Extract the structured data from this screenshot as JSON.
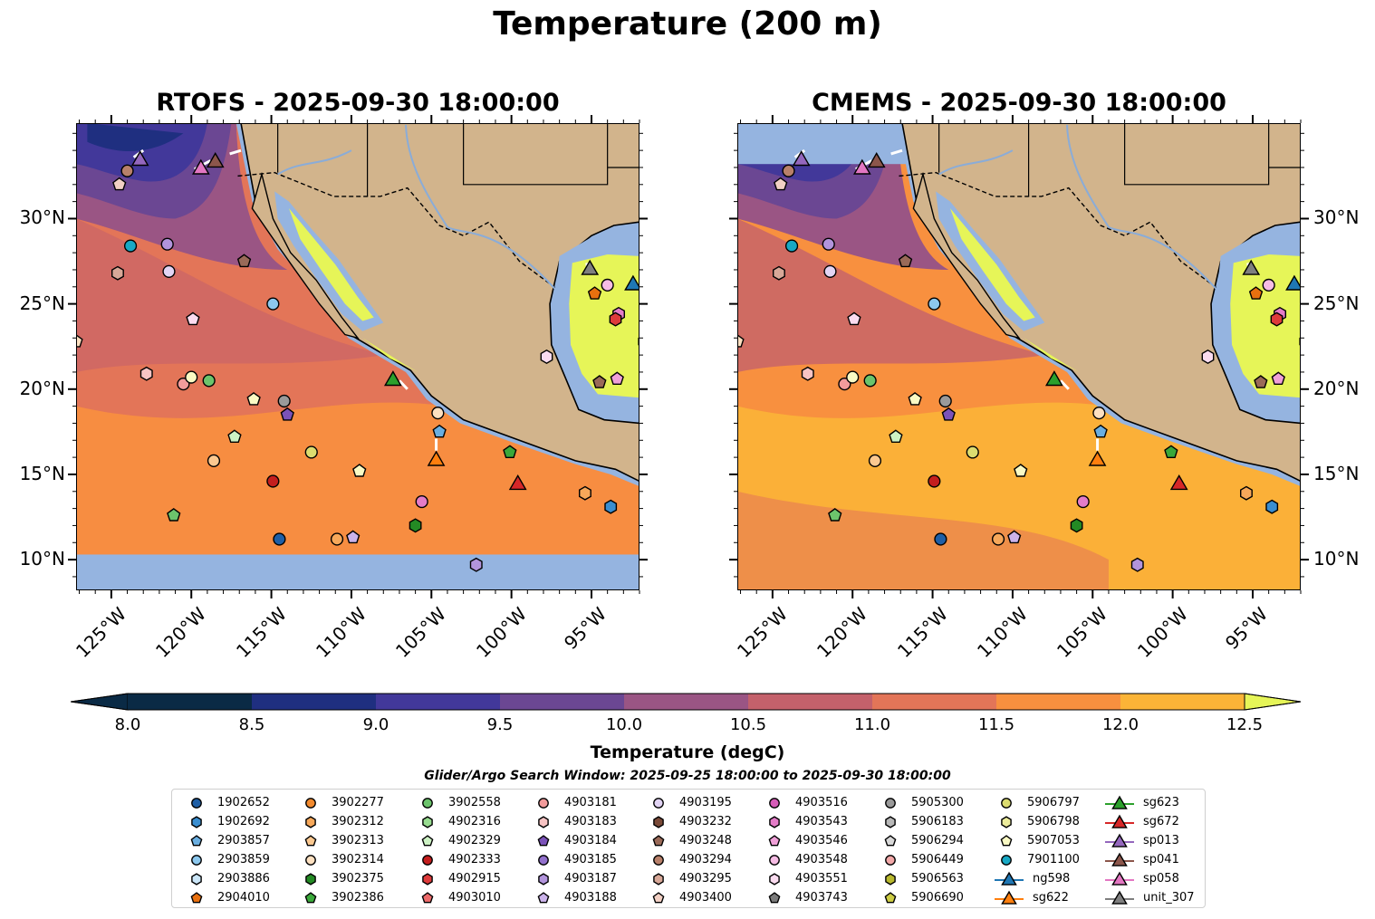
{
  "figure": {
    "title": "Temperature (200 m)"
  },
  "chart_data": [
    {
      "type": "heatmap",
      "title": "RTOFS - 2025-09-30 18:00:00",
      "xlim": [
        -127,
        -92
      ],
      "ylim": [
        8,
        35
      ],
      "xticks": [
        -125,
        -120,
        -115,
        -110,
        -105,
        -100,
        -95
      ],
      "xtick_labels": [
        "125°W",
        "120°W",
        "115°W",
        "110°W",
        "105°W",
        "100°W",
        "95°W"
      ],
      "yticks": [
        10,
        15,
        20,
        25,
        30
      ],
      "ytick_labels": [
        "10°N",
        "15°N",
        "20°N",
        "25°N",
        "30°N"
      ],
      "ytick_side": "left",
      "dominant_band": "10.5-11.5 degC offshore, 11.5-12.5 degC near coast and south"
    },
    {
      "type": "heatmap",
      "title": "CMEMS - 2025-09-30 18:00:00",
      "xlim": [
        -127,
        -92
      ],
      "ylim": [
        8,
        35
      ],
      "xticks": [
        -125,
        -120,
        -115,
        -110,
        -105,
        -100,
        -95
      ],
      "xtick_labels": [
        "125°W",
        "120°W",
        "115°W",
        "110°W",
        "105°W",
        "100°W",
        "95°W"
      ],
      "yticks": [
        10,
        15,
        20,
        25,
        30
      ],
      "ytick_labels": [
        "10°N",
        "15°N",
        "20°N",
        "25°N",
        "30°N"
      ],
      "ytick_side": "right",
      "dominant_band": "9.5-11.5 degC offshore north, 11.5-12.5 degC south"
    }
  ],
  "colorbar": {
    "label": "Temperature (degC)",
    "levels": [
      8.0,
      8.5,
      9.0,
      9.5,
      10.0,
      10.5,
      11.0,
      11.5,
      12.0,
      12.5
    ],
    "tick_labels": [
      "8.0",
      "8.5",
      "9.0",
      "9.5",
      "10.0",
      "10.5",
      "11.0",
      "11.5",
      "12.0",
      "12.5"
    ],
    "colors": [
      "#0a2a45",
      "#1f2f80",
      "#42389a",
      "#6b4793",
      "#9a5584",
      "#c4616b",
      "#e37558",
      "#f8903f",
      "#fbb437",
      "#e6f558"
    ],
    "under_color": "#0a2a45",
    "over_color": "#e6f558"
  },
  "legend": {
    "title": "Glider/Argo Search Window: 2025-09-25 18:00:00 to 2025-09-30 18:00:00",
    "columns": [
      [
        {
          "label": "1902652",
          "shape": "circle",
          "color": "#1f5fa6"
        },
        {
          "label": "1902692",
          "shape": "hexagon",
          "color": "#3a8ed0"
        },
        {
          "label": "2903857",
          "shape": "pentagon",
          "color": "#6aaee0"
        },
        {
          "label": "2903859",
          "shape": "circle",
          "color": "#8cc8ee"
        },
        {
          "label": "2903886",
          "shape": "hexagon",
          "color": "#cbe6f8"
        },
        {
          "label": "2904010",
          "shape": "pentagon",
          "color": "#e8700f"
        }
      ],
      [
        {
          "label": "3902277",
          "shape": "circle",
          "color": "#f28a2e"
        },
        {
          "label": "3902312",
          "shape": "hexagon",
          "color": "#f7a85a"
        },
        {
          "label": "3902313",
          "shape": "pentagon",
          "color": "#fbc890"
        },
        {
          "label": "3902314",
          "shape": "circle",
          "color": "#fde0c0"
        },
        {
          "label": "3902375",
          "shape": "hexagon",
          "color": "#248a24"
        },
        {
          "label": "3902386",
          "shape": "pentagon",
          "color": "#3aa83a"
        }
      ],
      [
        {
          "label": "3902558",
          "shape": "circle",
          "color": "#6cc46c"
        },
        {
          "label": "4902316",
          "shape": "hexagon",
          "color": "#98dc90"
        },
        {
          "label": "4902329",
          "shape": "pentagon",
          "color": "#cdf2c4"
        },
        {
          "label": "4902333",
          "shape": "circle",
          "color": "#c41e1e"
        },
        {
          "label": "4902915",
          "shape": "hexagon",
          "color": "#de3b3b"
        },
        {
          "label": "4903010",
          "shape": "pentagon",
          "color": "#ec6a6a"
        }
      ],
      [
        {
          "label": "4903181",
          "shape": "circle",
          "color": "#f29b9b"
        },
        {
          "label": "4903183",
          "shape": "hexagon",
          "color": "#f8c4c4"
        },
        {
          "label": "4903184",
          "shape": "pentagon",
          "color": "#7b52b8"
        },
        {
          "label": "4903185",
          "shape": "circle",
          "color": "#9270cc"
        },
        {
          "label": "4903187",
          "shape": "hexagon",
          "color": "#b294dc"
        },
        {
          "label": "4903188",
          "shape": "pentagon",
          "color": "#cbb3ea"
        }
      ],
      [
        {
          "label": "4903195",
          "shape": "circle",
          "color": "#e2d4f4"
        },
        {
          "label": "4903232",
          "shape": "hexagon",
          "color": "#7a4a38"
        },
        {
          "label": "4903248",
          "shape": "pentagon",
          "color": "#9a6a58"
        },
        {
          "label": "4903294",
          "shape": "circle",
          "color": "#b8806a"
        },
        {
          "label": "4903295",
          "shape": "hexagon",
          "color": "#d8a898"
        },
        {
          "label": "4903400",
          "shape": "pentagon",
          "color": "#f2d0c4"
        }
      ],
      [
        {
          "label": "4903516",
          "shape": "circle",
          "color": "#d65cb8"
        },
        {
          "label": "4903543",
          "shape": "hexagon",
          "color": "#e47cc8"
        },
        {
          "label": "4903546",
          "shape": "pentagon",
          "color": "#f0a0d8"
        },
        {
          "label": "4903548",
          "shape": "circle",
          "color": "#f6bce4"
        },
        {
          "label": "4903551",
          "shape": "hexagon",
          "color": "#fbdcf0"
        },
        {
          "label": "4903743",
          "shape": "pentagon",
          "color": "#7a7a7a"
        }
      ],
      [
        {
          "label": "5905300",
          "shape": "circle",
          "color": "#9a9a9a"
        },
        {
          "label": "5906183",
          "shape": "hexagon",
          "color": "#b8b8b8"
        },
        {
          "label": "5906294",
          "shape": "pentagon",
          "color": "#d8d8d8"
        },
        {
          "label": "5906449",
          "shape": "circle",
          "color": "#f2a8a8"
        },
        {
          "label": "5906563",
          "shape": "hexagon",
          "color": "#b8b82e"
        },
        {
          "label": "5906690",
          "shape": "pentagon",
          "color": "#cccc44"
        }
      ],
      [
        {
          "label": "5906797",
          "shape": "circle",
          "color": "#dcdc70"
        },
        {
          "label": "5906798",
          "shape": "hexagon",
          "color": "#ecec9c"
        },
        {
          "label": "5907053",
          "shape": "pentagon",
          "color": "#fafac4"
        },
        {
          "label": "7901100",
          "shape": "circle",
          "color": "#18a8c4"
        },
        {
          "label": "ng598",
          "shape": "triangle",
          "color": "#1f77b4"
        },
        {
          "label": "sg622",
          "shape": "triangle",
          "color": "#ff7f0e"
        }
      ],
      [
        {
          "label": "sg623",
          "shape": "triangle",
          "color": "#2ca02c"
        },
        {
          "label": "sg672",
          "shape": "triangle",
          "color": "#d62728"
        },
        {
          "label": "sp013",
          "shape": "triangle",
          "color": "#9467bd"
        },
        {
          "label": "sp041",
          "shape": "triangle",
          "color": "#8c564b"
        },
        {
          "label": "sp058",
          "shape": "triangle",
          "color": "#e377c2"
        },
        {
          "label": "unit_307",
          "shape": "triangle",
          "color": "#7f7f7f"
        }
      ]
    ]
  },
  "markers": [
    {
      "lon": -124.0,
      "lat": 32.8,
      "shape": "circle",
      "color": "#b8806a"
    },
    {
      "lon": -124.5,
      "lat": 32.0,
      "shape": "pentagon",
      "color": "#f2d0c4"
    },
    {
      "lon": -123.2,
      "lat": 33.5,
      "shape": "triangle",
      "color": "#9467bd"
    },
    {
      "lon": -118.5,
      "lat": 33.4,
      "shape": "triangle",
      "color": "#8c564b"
    },
    {
      "lon": -119.4,
      "lat": 33.0,
      "shape": "triangle",
      "color": "#e377c2"
    },
    {
      "lon": -123.8,
      "lat": 28.4,
      "shape": "circle",
      "color": "#18a8c4"
    },
    {
      "lon": -121.5,
      "lat": 28.5,
      "shape": "circle",
      "color": "#b294dc"
    },
    {
      "lon": -124.6,
      "lat": 26.8,
      "shape": "hexagon",
      "color": "#d8a898"
    },
    {
      "lon": -121.4,
      "lat": 26.9,
      "shape": "circle",
      "color": "#e2d4f4"
    },
    {
      "lon": -116.7,
      "lat": 27.5,
      "shape": "pentagon",
      "color": "#9a6a58"
    },
    {
      "lon": -114.9,
      "lat": 25.0,
      "shape": "circle",
      "color": "#8cc8ee"
    },
    {
      "lon": -119.9,
      "lat": 24.1,
      "shape": "pentagon",
      "color": "#fbdcf0"
    },
    {
      "lon": -127.2,
      "lat": 22.8,
      "shape": "pentagon",
      "color": "#fde0c0"
    },
    {
      "lon": -122.8,
      "lat": 20.9,
      "shape": "hexagon",
      "color": "#f8c4c4"
    },
    {
      "lon": -120.5,
      "lat": 20.3,
      "shape": "circle",
      "color": "#f29b9b"
    },
    {
      "lon": -120.0,
      "lat": 20.7,
      "shape": "circle",
      "color": "#fafac4"
    },
    {
      "lon": -118.9,
      "lat": 20.5,
      "shape": "circle",
      "color": "#6cc46c"
    },
    {
      "lon": -116.1,
      "lat": 19.4,
      "shape": "pentagon",
      "color": "#fafac4"
    },
    {
      "lon": -114.2,
      "lat": 19.3,
      "shape": "circle",
      "color": "#9a9a9a"
    },
    {
      "lon": -114.0,
      "lat": 18.5,
      "shape": "pentagon",
      "color": "#7b52b8"
    },
    {
      "lon": -117.3,
      "lat": 17.2,
      "shape": "pentagon",
      "color": "#cdf2c4"
    },
    {
      "lon": -118.6,
      "lat": 15.8,
      "shape": "circle",
      "color": "#fbc890"
    },
    {
      "lon": -112.5,
      "lat": 16.3,
      "shape": "circle",
      "color": "#dcdc70"
    },
    {
      "lon": -109.5,
      "lat": 15.2,
      "shape": "pentagon",
      "color": "#fafac4"
    },
    {
      "lon": -114.9,
      "lat": 14.6,
      "shape": "circle",
      "color": "#c41e1e"
    },
    {
      "lon": -121.1,
      "lat": 12.6,
      "shape": "pentagon",
      "color": "#6cc46c"
    },
    {
      "lon": -114.5,
      "lat": 11.2,
      "shape": "circle",
      "color": "#1f5fa6"
    },
    {
      "lon": -110.9,
      "lat": 11.2,
      "shape": "circle",
      "color": "#f7a85a"
    },
    {
      "lon": -109.9,
      "lat": 11.3,
      "shape": "pentagon",
      "color": "#cbb3ea"
    },
    {
      "lon": -107.4,
      "lat": 20.6,
      "shape": "triangle",
      "color": "#2ca02c"
    },
    {
      "lon": -104.6,
      "lat": 18.6,
      "shape": "circle",
      "color": "#fde0c0"
    },
    {
      "lon": -104.5,
      "lat": 17.5,
      "shape": "pentagon",
      "color": "#6aaee0"
    },
    {
      "lon": -104.7,
      "lat": 15.9,
      "shape": "triangle",
      "color": "#ff7f0e"
    },
    {
      "lon": -105.6,
      "lat": 13.4,
      "shape": "circle",
      "color": "#e47cc8"
    },
    {
      "lon": -106.0,
      "lat": 12.0,
      "shape": "hexagon",
      "color": "#248a24"
    },
    {
      "lon": -100.1,
      "lat": 16.3,
      "shape": "pentagon",
      "color": "#3aa83a"
    },
    {
      "lon": -99.6,
      "lat": 14.5,
      "shape": "triangle",
      "color": "#d62728"
    },
    {
      "lon": -102.2,
      "lat": 9.7,
      "shape": "hexagon",
      "color": "#b294dc"
    },
    {
      "lon": -95.4,
      "lat": 13.9,
      "shape": "hexagon",
      "color": "#f7a85a"
    },
    {
      "lon": -93.8,
      "lat": 13.1,
      "shape": "hexagon",
      "color": "#3a8ed0"
    },
    {
      "lon": -95.1,
      "lat": 27.1,
      "shape": "triangle",
      "color": "#7f7f7f"
    },
    {
      "lon": -94.0,
      "lat": 26.1,
      "shape": "circle",
      "color": "#f6bce4"
    },
    {
      "lon": -92.4,
      "lat": 26.2,
      "shape": "triangle",
      "color": "#1f77b4"
    },
    {
      "lon": -94.8,
      "lat": 25.6,
      "shape": "pentagon",
      "color": "#e8700f"
    },
    {
      "lon": -93.3,
      "lat": 24.4,
      "shape": "hexagon",
      "color": "#e47cc8"
    },
    {
      "lon": -93.5,
      "lat": 24.1,
      "shape": "hexagon",
      "color": "#de3b3b"
    },
    {
      "lon": -91.7,
      "lat": 22.8,
      "shape": "hexagon",
      "color": "#7a4a38"
    },
    {
      "lon": -97.8,
      "lat": 21.9,
      "shape": "hexagon",
      "color": "#fbdcf0"
    },
    {
      "lon": -94.5,
      "lat": 20.4,
      "shape": "pentagon",
      "color": "#9a6a58"
    },
    {
      "lon": -93.4,
      "lat": 20.6,
      "shape": "pentagon",
      "color": "#f0a0d8"
    }
  ]
}
